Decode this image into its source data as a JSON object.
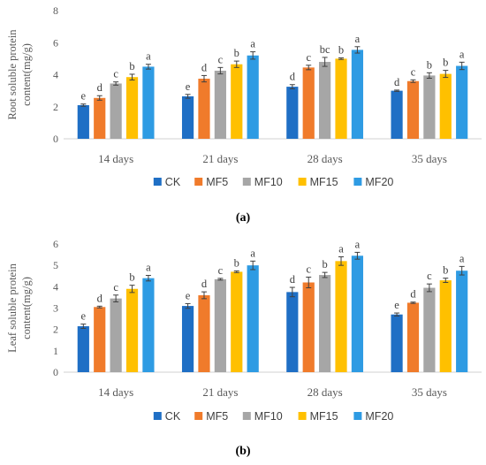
{
  "chart_data": [
    {
      "type": "bar",
      "panel_label": "(a)",
      "ylabel": [
        "Root soluble protein",
        "content(mg/g)"
      ],
      "ylim": [
        0,
        8
      ],
      "yticks": [
        0,
        2,
        4,
        6,
        8
      ],
      "categories": [
        "14 days",
        "21 days",
        "28 days",
        "35 days"
      ],
      "legend_position": "bottom",
      "grid": false,
      "series": [
        {
          "name": "CK",
          "color": "#1f6fc5",
          "values": [
            2.1,
            2.65,
            3.25,
            3.0
          ],
          "errors": [
            0.07,
            0.12,
            0.13,
            0.04
          ],
          "letters": [
            "e",
            "e",
            "d",
            "d"
          ]
        },
        {
          "name": "MF5",
          "color": "#f07b2b",
          "values": [
            2.55,
            3.75,
            4.45,
            3.6
          ],
          "errors": [
            0.14,
            0.2,
            0.14,
            0.08
          ],
          "letters": [
            "d",
            "d",
            "c",
            "c"
          ]
        },
        {
          "name": "MF10",
          "color": "#a6a6a6",
          "values": [
            3.45,
            4.25,
            4.8,
            3.95
          ],
          "errors": [
            0.1,
            0.2,
            0.28,
            0.17
          ],
          "letters": [
            "c",
            "c",
            "bc",
            "b"
          ]
        },
        {
          "name": "MF15",
          "color": "#ffc000",
          "values": [
            3.85,
            4.65,
            5.0,
            4.05
          ],
          "errors": [
            0.18,
            0.2,
            0.05,
            0.22
          ],
          "letters": [
            "b",
            "b",
            "b",
            "b"
          ]
        },
        {
          "name": "MF20",
          "color": "#2e9be3",
          "values": [
            4.5,
            5.2,
            5.55,
            4.55
          ],
          "errors": [
            0.15,
            0.23,
            0.2,
            0.23
          ],
          "letters": [
            "a",
            "a",
            "a",
            "a"
          ]
        }
      ]
    },
    {
      "type": "bar",
      "panel_label": "(b)",
      "ylabel": [
        "Leaf soluble protein",
        "content(mg/g)"
      ],
      "ylim": [
        0,
        6
      ],
      "yticks": [
        0,
        1,
        2,
        3,
        4,
        5,
        6
      ],
      "categories": [
        "14 days",
        "21 days",
        "28 days",
        "35 days"
      ],
      "legend_position": "bottom",
      "grid": false,
      "series": [
        {
          "name": "CK",
          "color": "#1f6fc5",
          "values": [
            2.15,
            3.1,
            3.75,
            2.7
          ],
          "errors": [
            0.1,
            0.11,
            0.22,
            0.07
          ],
          "letters": [
            "e",
            "e",
            "d",
            "e"
          ]
        },
        {
          "name": "MF5",
          "color": "#f07b2b",
          "values": [
            3.05,
            3.6,
            4.2,
            3.25
          ],
          "errors": [
            0.04,
            0.16,
            0.25,
            0.03
          ],
          "letters": [
            "d",
            "d",
            "c",
            "d"
          ]
        },
        {
          "name": "MF10",
          "color": "#a6a6a6",
          "values": [
            3.45,
            4.35,
            4.55,
            3.95
          ],
          "errors": [
            0.16,
            0.04,
            0.12,
            0.18
          ],
          "letters": [
            "c",
            "c",
            "b",
            "c"
          ]
        },
        {
          "name": "MF15",
          "color": "#ffc000",
          "values": [
            3.9,
            4.7,
            5.2,
            4.3
          ],
          "errors": [
            0.17,
            0.04,
            0.2,
            0.1
          ],
          "letters": [
            "b",
            "b",
            "a",
            "b"
          ]
        },
        {
          "name": "MF20",
          "color": "#2e9be3",
          "values": [
            4.4,
            5.0,
            5.45,
            4.75
          ],
          "errors": [
            0.13,
            0.2,
            0.16,
            0.2
          ],
          "letters": [
            "a",
            "a",
            "a",
            "a"
          ]
        }
      ]
    }
  ]
}
